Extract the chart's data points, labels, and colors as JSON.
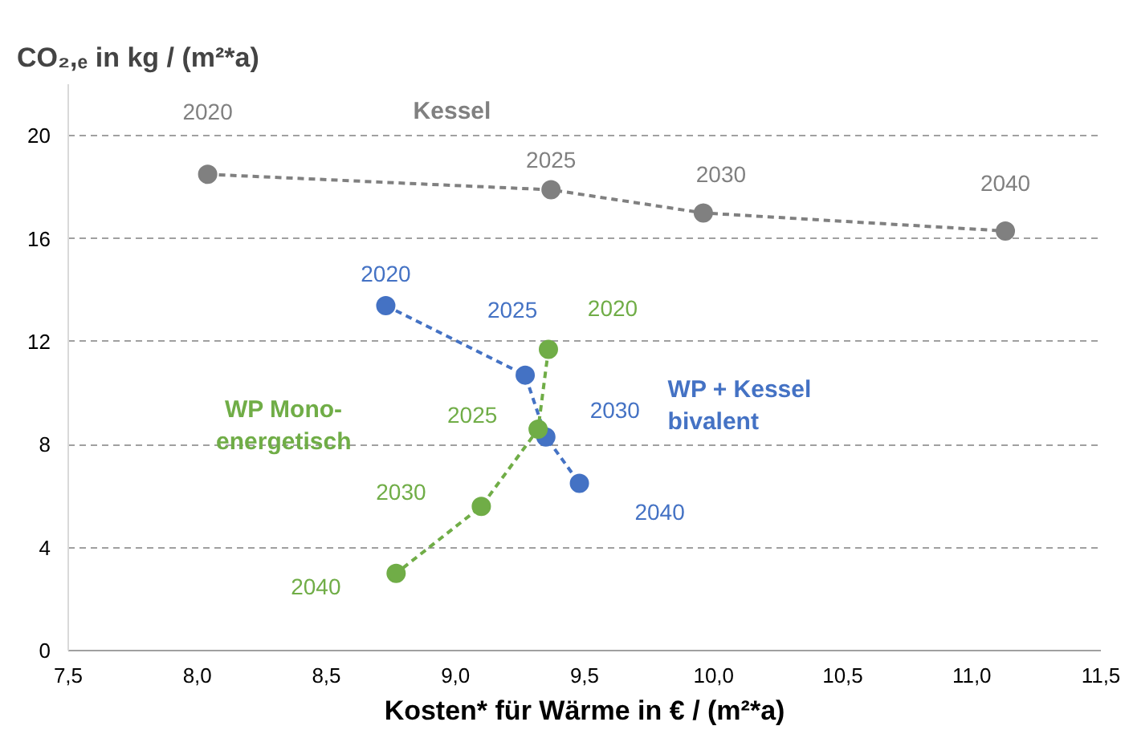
{
  "chart_data": {
    "type": "line",
    "ylabel": "CO₂,ₑ in kg / (m²*a)",
    "xlabel": "Kosten* für Wärme in € / (m²*a)",
    "xlim": [
      7.5,
      11.5
    ],
    "xticks": [
      {
        "value": 7.5,
        "label": "7,5"
      },
      {
        "value": 8,
        "label": "8,0"
      },
      {
        "value": 8.5,
        "label": "8,5"
      },
      {
        "value": 9,
        "label": "9,0"
      },
      {
        "value": 9.5,
        "label": "9,5"
      },
      {
        "value": 10,
        "label": "10,0"
      },
      {
        "value": 10.5,
        "label": "10,5"
      },
      {
        "value": 11,
        "label": "11,0"
      },
      {
        "value": 11.5,
        "label": "11,5"
      }
    ],
    "ylim": [
      0,
      22
    ],
    "yticks": [
      0,
      4,
      8,
      12,
      16,
      20
    ],
    "grid": "y",
    "marker": "circle",
    "line_style": "dashed",
    "series": [
      {
        "name": "Kessel",
        "color": "#808080",
        "x": [
          8.04,
          9.37,
          9.96,
          11.13
        ],
        "values": [
          18.5,
          17.9,
          17.0,
          16.3
        ]
      },
      {
        "name": "WP + Kessel\nbivalent",
        "color": "#4472c4",
        "x": [
          8.73,
          9.27,
          9.35,
          9.48
        ],
        "values": [
          13.4,
          10.7,
          8.3,
          6.5
        ]
      },
      {
        "name": "WP Mono-\nenergetisch",
        "color": "#70ad47",
        "x": [
          9.36,
          9.32,
          9.1,
          8.77
        ],
        "values": [
          11.7,
          8.6,
          5.6,
          3.0
        ]
      }
    ],
    "annotations": [
      "2020",
      "2025",
      "2030",
      "2040",
      "2020",
      "2025",
      "2030",
      "2040",
      "2020",
      "2025",
      "2030",
      "2040"
    ]
  }
}
